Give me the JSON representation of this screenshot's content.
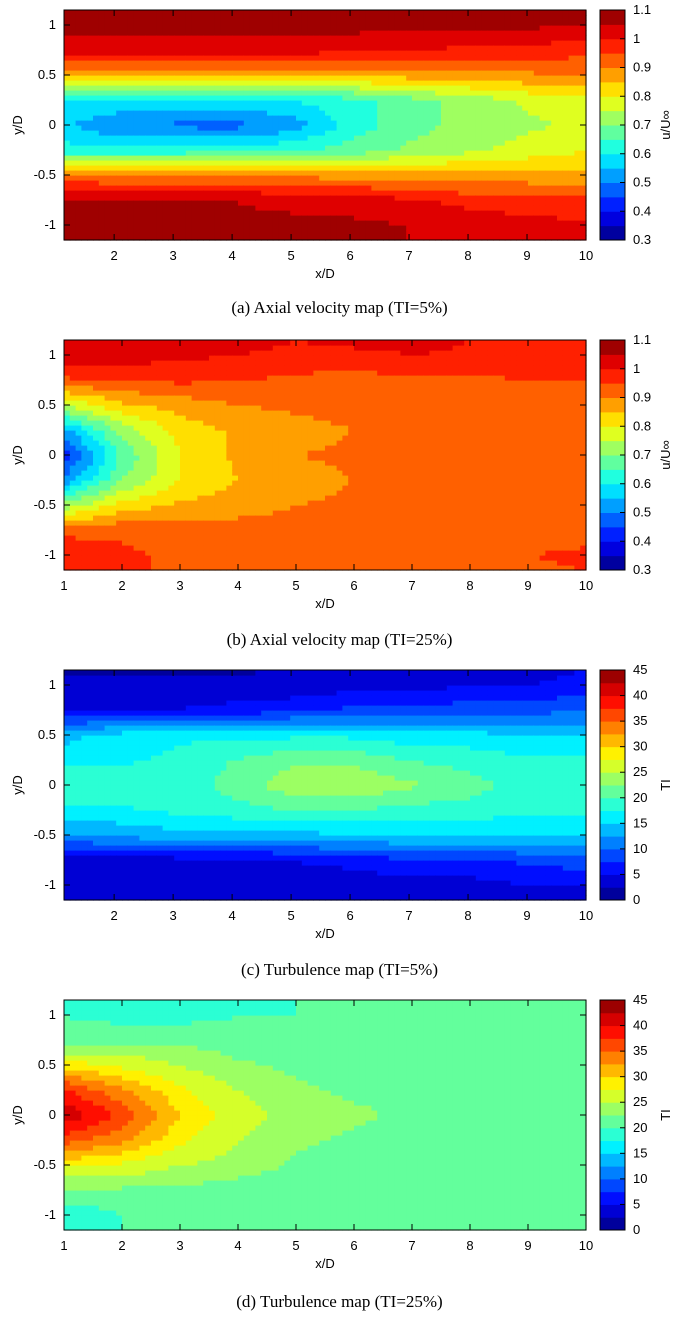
{
  "chart_data": [
    {
      "type": "heatmap",
      "caption": "(a) Axial velocity map (TI=5%)",
      "xlabel": "x/D",
      "ylabel": "y/D",
      "colorbar_label": "u/U∞",
      "xlim": [
        1.15,
        10
      ],
      "ylim": [
        -1.15,
        1.15
      ],
      "xticks": [
        "2",
        "3",
        "4",
        "5",
        "6",
        "7",
        "8",
        "9",
        "10"
      ],
      "yticks": [
        "-1",
        "-0.5",
        "0",
        "0.5",
        "1"
      ],
      "clim": [
        0.3,
        1.1
      ],
      "cticks": [
        "0.3",
        "0.4",
        "0.5",
        "0.6",
        "0.7",
        "0.8",
        "0.9",
        "1",
        "1.1"
      ],
      "colormap": "jet",
      "x": [
        1.15,
        2,
        3,
        4,
        5,
        6,
        7,
        8,
        9,
        10
      ],
      "y": [
        -1.15,
        -1.0,
        -0.75,
        -0.5,
        -0.25,
        0,
        0.25,
        0.5,
        0.75,
        1.0,
        1.15
      ],
      "z": [
        [
          1.05,
          1.05,
          1.05,
          1.05,
          1.05,
          1.05,
          1.05,
          1.05,
          1.0,
          1.0
        ],
        [
          1.06,
          1.06,
          1.06,
          1.06,
          1.06,
          1.06,
          1.05,
          1.04,
          1.02,
          1.01
        ],
        [
          1.05,
          1.05,
          1.05,
          1.05,
          1.04,
          1.03,
          1.01,
          0.98,
          0.97,
          0.96
        ],
        [
          0.92,
          0.9,
          0.9,
          0.9,
          0.89,
          0.88,
          0.87,
          0.87,
          0.87,
          0.86
        ],
        [
          0.62,
          0.62,
          0.62,
          0.63,
          0.64,
          0.67,
          0.71,
          0.74,
          0.77,
          0.8
        ],
        [
          0.56,
          0.5,
          0.49,
          0.48,
          0.52,
          0.62,
          0.68,
          0.72,
          0.74,
          0.76
        ],
        [
          0.6,
          0.6,
          0.59,
          0.59,
          0.6,
          0.63,
          0.68,
          0.72,
          0.76,
          0.79
        ],
        [
          0.86,
          0.85,
          0.85,
          0.85,
          0.86,
          0.86,
          0.87,
          0.88,
          0.89,
          0.9
        ],
        [
          1.02,
          1.02,
          1.02,
          1.02,
          1.02,
          1.01,
          1.0,
          0.99,
          0.98,
          0.97
        ],
        [
          1.07,
          1.07,
          1.07,
          1.07,
          1.07,
          1.07,
          1.06,
          1.06,
          1.06,
          1.05
        ],
        [
          1.08,
          1.08,
          1.08,
          1.08,
          1.08,
          1.08,
          1.08,
          1.08,
          1.08,
          1.08
        ]
      ]
    },
    {
      "type": "heatmap",
      "caption": "(b) Axial velocity map (TI=25%)",
      "xlabel": "x/D",
      "ylabel": "y/D",
      "colorbar_label": "u/U∞",
      "xlim": [
        1,
        10
      ],
      "ylim": [
        -1.15,
        1.15
      ],
      "xticks": [
        "1",
        "2",
        "3",
        "4",
        "5",
        "6",
        "7",
        "8",
        "9",
        "10"
      ],
      "yticks": [
        "-1",
        "-0.5",
        "0",
        "0.5",
        "1"
      ],
      "clim": [
        0.3,
        1.1
      ],
      "cticks": [
        "0.3",
        "0.4",
        "0.5",
        "0.6",
        "0.7",
        "0.8",
        "0.9",
        "1",
        "1.1"
      ],
      "colormap": "jet",
      "x": [
        1,
        2,
        3,
        4,
        5,
        6,
        7,
        8,
        9,
        10
      ],
      "y": [
        -1.15,
        -1.0,
        -0.75,
        -0.5,
        -0.25,
        0,
        0.25,
        0.5,
        0.75,
        1.0,
        1.15
      ],
      "z": [
        [
          0.97,
          0.96,
          0.94,
          0.93,
          0.93,
          0.93,
          0.92,
          0.93,
          0.94,
          0.95
        ],
        [
          1.0,
          0.96,
          0.94,
          0.93,
          0.92,
          0.92,
          0.93,
          0.92,
          0.95,
          0.96
        ],
        [
          0.93,
          0.94,
          0.93,
          0.92,
          0.92,
          0.92,
          0.92,
          0.92,
          0.92,
          0.93
        ],
        [
          0.72,
          0.82,
          0.86,
          0.88,
          0.9,
          0.91,
          0.92,
          0.92,
          0.91,
          0.92
        ],
        [
          0.52,
          0.7,
          0.8,
          0.85,
          0.88,
          0.9,
          0.91,
          0.91,
          0.92,
          0.92
        ],
        [
          0.42,
          0.66,
          0.8,
          0.86,
          0.9,
          0.91,
          0.91,
          0.91,
          0.91,
          0.92
        ],
        [
          0.53,
          0.72,
          0.82,
          0.86,
          0.88,
          0.9,
          0.91,
          0.92,
          0.92,
          0.92
        ],
        [
          0.75,
          0.84,
          0.87,
          0.9,
          0.91,
          0.92,
          0.92,
          0.93,
          0.93,
          0.93
        ],
        [
          0.94,
          0.95,
          0.96,
          0.95,
          0.94,
          0.93,
          0.94,
          0.94,
          0.95,
          0.95
        ],
        [
          1.03,
          1.03,
          1.01,
          1.0,
          0.98,
          0.98,
          1.0,
          0.99,
          0.99,
          0.99
        ],
        [
          1.05,
          1.05,
          1.04,
          1.03,
          1.0,
          1.02,
          1.02,
          1.0,
          1.0,
          0.99
        ]
      ]
    },
    {
      "type": "heatmap",
      "caption": "(c) Turbulence map (TI=5%)",
      "xlabel": "x/D",
      "ylabel": "y/D",
      "colorbar_label": "TI",
      "xlim": [
        1.15,
        10
      ],
      "ylim": [
        -1.15,
        1.15
      ],
      "xticks": [
        "2",
        "3",
        "4",
        "5",
        "6",
        "7",
        "8",
        "9",
        "10"
      ],
      "yticks": [
        "-1",
        "-0.5",
        "0",
        "0.5",
        "1"
      ],
      "clim": [
        0,
        45
      ],
      "cticks": [
        "0",
        "5",
        "10",
        "15",
        "20",
        "25",
        "30",
        "35",
        "40",
        "45"
      ],
      "colormap": "jet",
      "x": [
        1.15,
        2,
        3,
        4,
        5,
        6,
        7,
        8,
        9,
        10
      ],
      "y": [
        -1.15,
        -1.0,
        -0.75,
        -0.5,
        -0.25,
        0,
        0.25,
        0.5,
        0.75,
        1.0,
        1.15
      ],
      "z": [
        [
          3,
          3,
          3,
          3,
          3,
          3,
          3,
          4,
          4,
          4
        ],
        [
          3,
          3,
          3,
          3,
          3,
          3,
          4,
          4,
          5,
          5
        ],
        [
          4,
          4,
          4,
          4,
          5,
          6,
          7,
          7,
          8,
          9
        ],
        [
          12,
          13,
          14,
          14,
          14,
          15,
          15,
          15,
          15,
          15
        ],
        [
          17,
          17,
          18,
          19,
          20,
          20,
          19,
          19,
          18,
          18
        ],
        [
          20,
          20,
          18,
          21,
          24,
          25,
          23,
          21,
          19,
          18
        ],
        [
          17,
          17,
          18,
          20,
          22,
          22,
          20,
          19,
          18,
          18
        ],
        [
          14,
          16,
          17,
          17,
          17,
          17,
          16,
          16,
          15,
          15
        ],
        [
          5,
          5,
          5,
          6,
          7,
          8,
          8,
          9,
          9,
          10
        ],
        [
          3,
          3,
          3,
          3,
          3,
          4,
          4,
          5,
          5,
          6
        ],
        [
          2,
          2,
          2,
          2,
          3,
          3,
          3,
          4,
          4,
          5
        ]
      ]
    },
    {
      "type": "heatmap",
      "caption": "(d) Turbulence map (TI=25%)",
      "xlabel": "x/D",
      "ylabel": "y/D",
      "colorbar_label": "TI",
      "xlim": [
        1,
        10
      ],
      "ylim": [
        -1.15,
        1.15
      ],
      "xticks": [
        "1",
        "2",
        "3",
        "4",
        "5",
        "6",
        "7",
        "8",
        "9",
        "10"
      ],
      "yticks": [
        "-1",
        "-0.5",
        "0",
        "0.5",
        "1"
      ],
      "clim": [
        0,
        45
      ],
      "cticks": [
        "0",
        "5",
        "10",
        "15",
        "20",
        "25",
        "30",
        "35",
        "40",
        "45"
      ],
      "colormap": "jet",
      "x": [
        1,
        2,
        3,
        4,
        5,
        6,
        7,
        8,
        9,
        10
      ],
      "y": [
        -1.15,
        -1.0,
        -0.75,
        -0.5,
        -0.25,
        0,
        0.25,
        0.5,
        0.75,
        1.0,
        1.15
      ],
      "z": [
        [
          18,
          20,
          20,
          20,
          20,
          20,
          20,
          20,
          20,
          20
        ],
        [
          18,
          20,
          20,
          20,
          20,
          20,
          20,
          20,
          20,
          20
        ],
        [
          22,
          22,
          22,
          21,
          21,
          20,
          20,
          20,
          20,
          20
        ],
        [
          28,
          27,
          25,
          24,
          22,
          21,
          21,
          21,
          20,
          20
        ],
        [
          36,
          33,
          28,
          25,
          23,
          22,
          21,
          21,
          20,
          20
        ],
        [
          42,
          37,
          30,
          26,
          24,
          23,
          22,
          21,
          21,
          21
        ],
        [
          38,
          33,
          28,
          25,
          23,
          22,
          22,
          21,
          20,
          21
        ],
        [
          29,
          27,
          25,
          23,
          22,
          21,
          21,
          21,
          20,
          21
        ],
        [
          21,
          22,
          22,
          21,
          21,
          21,
          20,
          20,
          21,
          21
        ],
        [
          20,
          19,
          19,
          20,
          20,
          20,
          20,
          20,
          20,
          20
        ],
        [
          20,
          19,
          19,
          19,
          20,
          20,
          20,
          20,
          20,
          20
        ]
      ]
    }
  ]
}
